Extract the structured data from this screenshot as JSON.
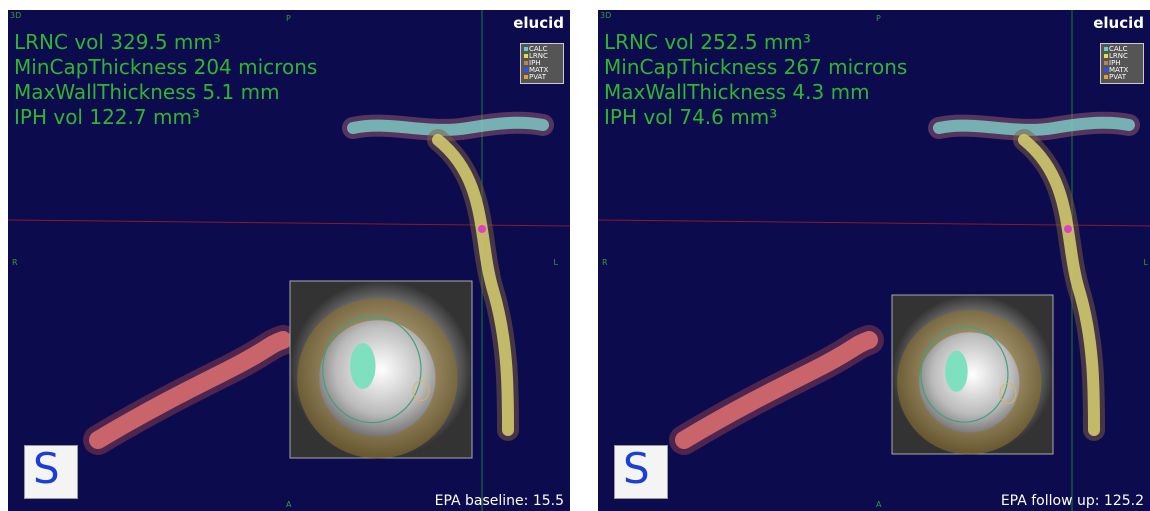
{
  "panels": [
    {
      "orientation": {
        "top_left": "3D",
        "top": "P",
        "left": "R",
        "right": "L",
        "bottom": "A"
      },
      "brand": "elucid",
      "legend": [
        "CALC",
        "LRNC",
        "IPH",
        "MATX",
        "PVAT"
      ],
      "measurements": [
        "LRNC vol 329.5 mm³",
        "MinCapThickness 204 microns",
        "MaxWallThickness 5.1 mm",
        "IPH vol 122.7 mm³"
      ],
      "footer": "EPA baseline: 15.5",
      "cube_label": "S"
    },
    {
      "orientation": {
        "top_left": "3D",
        "top": "P",
        "left": "R",
        "right": "L",
        "bottom": "A"
      },
      "brand": "elucid",
      "legend": [
        "CALC",
        "LRNC",
        "IPH",
        "MATX",
        "PVAT"
      ],
      "measurements": [
        "LRNC vol 252.5 mm³",
        "MinCapThickness 267 microns",
        "MaxWallThickness 4.3 mm",
        "IPH vol 74.6 mm³"
      ],
      "footer": "EPA follow up: 125.2",
      "cube_label": "S"
    }
  ]
}
